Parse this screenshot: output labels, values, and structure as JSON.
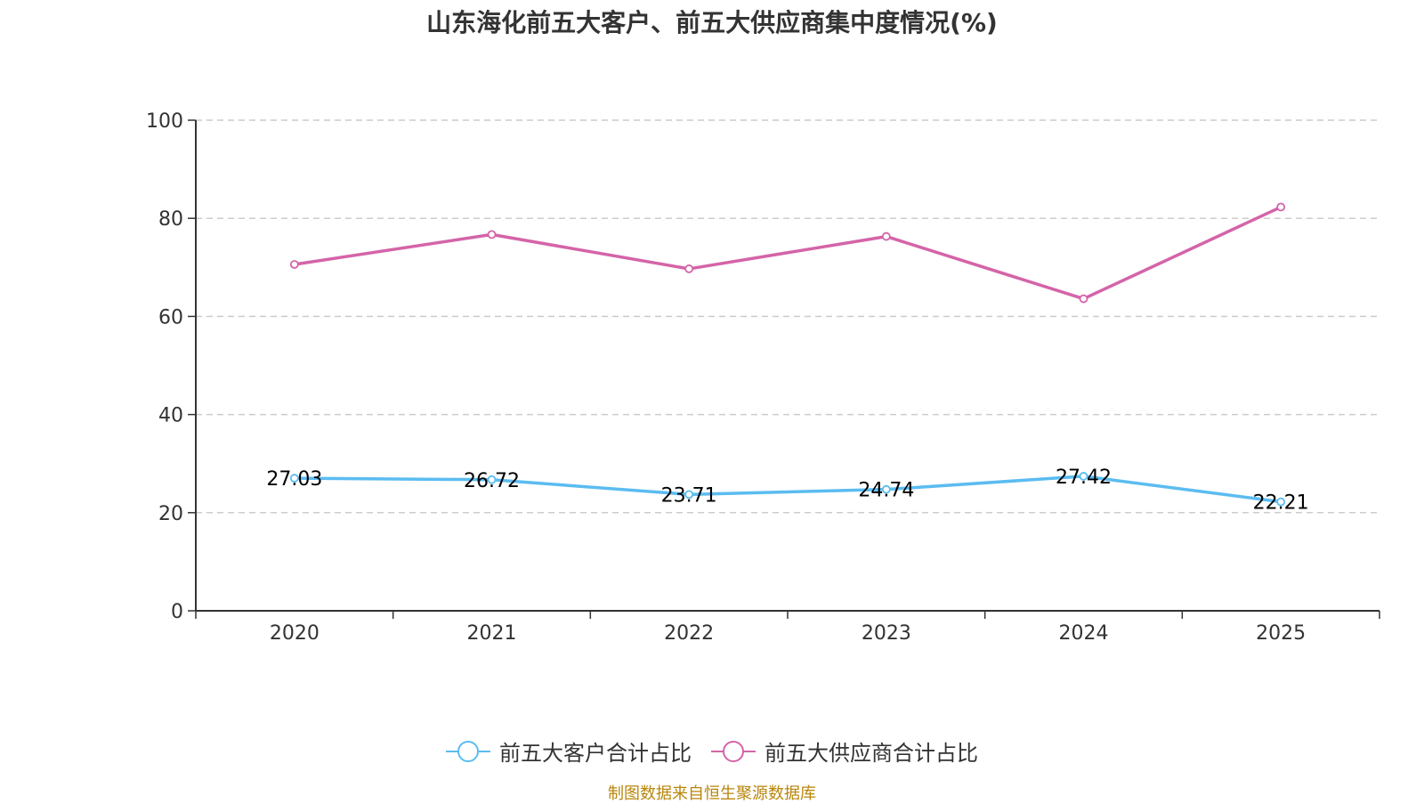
{
  "chart_data": {
    "type": "line",
    "title": "山东海化前五大客户、前五大供应商集中度情况(%)",
    "categories": [
      "2020",
      "2021",
      "2022",
      "2023",
      "2024",
      "2025"
    ],
    "ylim": [
      0,
      100
    ],
    "yticks": [
      "0",
      "20",
      "40",
      "60",
      "80",
      "100"
    ],
    "xlabel": "",
    "ylabel": "",
    "grid": true,
    "legend_position": "bottom-center",
    "series": [
      {
        "name": "前五大客户合计占比",
        "color": "#5bbcf0",
        "values": [
          27.03,
          26.72,
          23.71,
          24.74,
          27.42,
          22.21
        ],
        "labels": [
          "27.03",
          "26.72",
          "23.71",
          "24.74",
          "27.42",
          "22.21"
        ],
        "show_labels": true
      },
      {
        "name": "前五大供应商合计占比",
        "color": "#d464a8",
        "values": [
          70.6,
          76.7,
          69.7,
          76.3,
          63.6,
          82.3
        ],
        "show_labels": false
      }
    ]
  },
  "source": "制图数据来自恒生聚源数据库"
}
